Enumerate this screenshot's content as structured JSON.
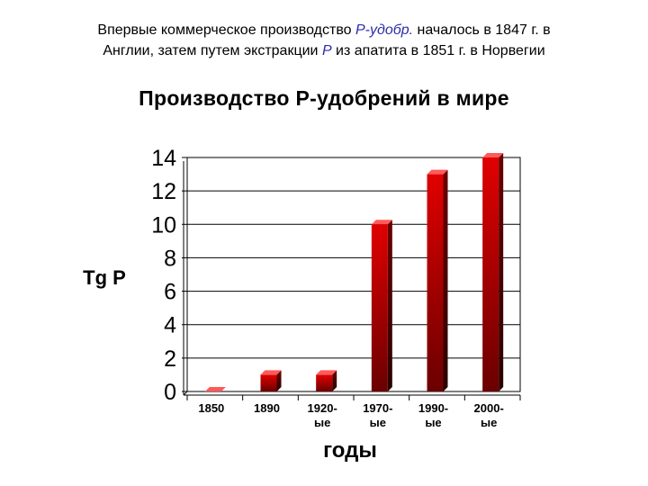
{
  "header": {
    "line1_a": "Впервые коммерческое производство ",
    "line1_b": "Р-удобр.",
    "line1_c": " началось в 1847 г. в",
    "line2_a": "Англии, затем  путем экстракции ",
    "line2_b": "Р",
    "line2_c": " из апатита в 1851 г. в Норвегии"
  },
  "colors": {
    "bar_front": "#e00000",
    "bar_side": "#6a0000",
    "bar_top": "#ff5a5a"
  },
  "chart_data": {
    "type": "bar",
    "title": "Производство Р-удобрений в мире",
    "xlabel": "годы",
    "ylabel": "Tg P",
    "categories": [
      "1850",
      "1890",
      "1920-ые",
      "1970-ые",
      "1990-ые",
      "2000-ые"
    ],
    "values": [
      0,
      1,
      1,
      10,
      13,
      14
    ],
    "yticks": [
      "0",
      "2",
      "4",
      "6",
      "8",
      "10",
      "12",
      "14"
    ],
    "ylim": [
      0,
      14
    ],
    "grid": true
  }
}
